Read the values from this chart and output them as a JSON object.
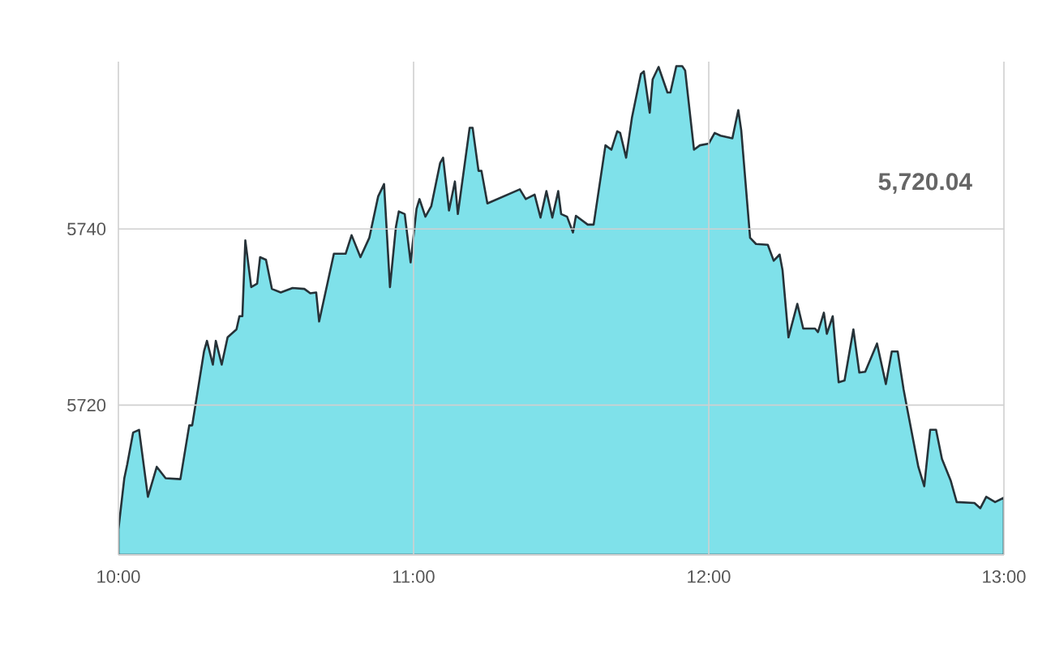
{
  "chart_data": {
    "type": "area",
    "color": "#7fe1ea",
    "grid": true,
    "xlim": [
      10,
      13
    ],
    "ylim": [
      5703,
      5759
    ],
    "xticks": [
      {
        "value": 10,
        "label": "10:00"
      },
      {
        "value": 11,
        "label": "11:00"
      },
      {
        "value": 12,
        "label": "12:00"
      },
      {
        "value": 13,
        "label": "13:00"
      }
    ],
    "yticks": [
      5720,
      5740
    ],
    "annotations": [
      "5,720.04"
    ],
    "x": [
      10.0,
      10.02,
      10.03,
      10.05,
      10.07,
      10.1,
      10.13,
      10.16,
      10.21,
      10.24,
      10.25,
      10.29,
      10.3,
      10.32,
      10.33,
      10.35,
      10.37,
      10.4,
      10.41,
      10.42,
      10.43,
      10.45,
      10.47,
      10.48,
      10.5,
      10.52,
      10.55,
      10.59,
      10.63,
      10.65,
      10.67,
      10.68,
      10.71,
      10.73,
      10.77,
      10.79,
      10.82,
      10.85,
      10.88,
      10.9,
      10.92,
      10.94,
      10.95,
      10.97,
      10.99,
      11.01,
      11.02,
      11.04,
      11.06,
      11.09,
      11.1,
      11.12,
      11.14,
      11.15,
      11.19,
      11.2,
      11.22,
      11.23,
      11.25,
      11.36,
      11.38,
      11.41,
      11.43,
      11.45,
      11.47,
      11.49,
      11.5,
      11.52,
      11.54,
      11.55,
      11.59,
      11.61,
      11.65,
      11.67,
      11.69,
      11.7,
      11.72,
      11.74,
      11.77,
      11.78,
      11.8,
      11.81,
      11.83,
      11.86,
      11.87,
      11.89,
      11.91,
      11.92,
      11.95,
      11.97,
      12.0,
      12.02,
      12.04,
      12.08,
      12.1,
      12.11,
      12.14,
      12.16,
      12.2,
      12.22,
      12.24,
      12.25,
      12.27,
      12.3,
      12.32,
      12.36,
      12.37,
      12.39,
      12.4,
      12.42,
      12.44,
      12.46,
      12.49,
      12.51,
      12.53,
      12.57,
      12.6,
      12.62,
      12.64,
      12.66,
      12.67,
      12.71,
      12.73,
      12.75,
      12.77,
      12.79,
      12.82,
      12.84,
      12.9,
      12.92,
      12.94,
      12.97,
      13.0
    ],
    "values": [
      5705.9,
      5711.7,
      5713.3,
      5716.9,
      5717.2,
      5709.6,
      5713.0,
      5711.7,
      5711.6,
      5717.7,
      5717.7,
      5726.1,
      5727.3,
      5724.6,
      5727.3,
      5724.6,
      5727.7,
      5728.6,
      5730.1,
      5730.1,
      5738.7,
      5733.4,
      5733.8,
      5736.8,
      5736.5,
      5733.2,
      5732.8,
      5733.3,
      5733.2,
      5732.7,
      5732.8,
      5729.5,
      5734.1,
      5737.2,
      5737.2,
      5739.3,
      5736.8,
      5739.0,
      5743.7,
      5745.1,
      5733.4,
      5740.2,
      5742.0,
      5741.7,
      5736.2,
      5742.3,
      5743.4,
      5741.4,
      5742.6,
      5747.5,
      5748.1,
      5742.1,
      5745.4,
      5741.7,
      5751.5,
      5751.5,
      5746.6,
      5746.6,
      5742.9,
      5744.5,
      5743.4,
      5743.9,
      5741.3,
      5744.3,
      5741.3,
      5744.3,
      5741.7,
      5741.4,
      5739.6,
      5741.5,
      5740.5,
      5740.5,
      5749.5,
      5749.0,
      5751.1,
      5750.9,
      5748.1,
      5752.7,
      5757.6,
      5757.9,
      5753.2,
      5757.0,
      5758.4,
      5755.5,
      5755.5,
      5758.5,
      5758.5,
      5758.0,
      5749.0,
      5749.5,
      5749.7,
      5750.9,
      5750.6,
      5750.3,
      5753.5,
      5751.2,
      5739.0,
      5738.3,
      5738.2,
      5736.4,
      5737.1,
      5735.3,
      5727.7,
      5731.5,
      5728.7,
      5728.7,
      5728.3,
      5730.5,
      5728.1,
      5730.1,
      5722.6,
      5722.8,
      5728.6,
      5723.7,
      5723.8,
      5727.0,
      5722.4,
      5726.1,
      5726.1,
      5721.8,
      5720.0,
      5713.0,
      5710.8,
      5717.2,
      5717.2,
      5713.9,
      5711.4,
      5709.0,
      5708.9,
      5708.3,
      5709.6,
      5709.0,
      5709.5
    ]
  }
}
